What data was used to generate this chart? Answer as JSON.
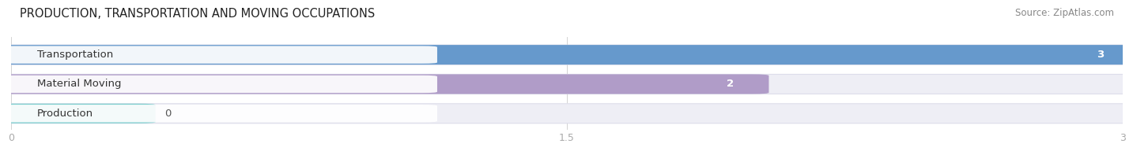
{
  "title": "PRODUCTION, TRANSPORTATION AND MOVING OCCUPATIONS",
  "source": "Source: ZipAtlas.com",
  "categories": [
    "Transportation",
    "Material Moving",
    "Production"
  ],
  "values": [
    3,
    2,
    0
  ],
  "bar_colors": [
    "#6699CC",
    "#B09CC8",
    "#7ECECE"
  ],
  "bar_bg_color": "#EEEEF5",
  "bar_border_color": "#DDDDEA",
  "xlim": [
    0,
    3
  ],
  "xticks": [
    0,
    1.5,
    3
  ],
  "title_fontsize": 10.5,
  "source_fontsize": 8.5,
  "label_fontsize": 9.5,
  "value_fontsize": 9.5,
  "figsize": [
    14.06,
    1.96
  ],
  "dpi": 100
}
